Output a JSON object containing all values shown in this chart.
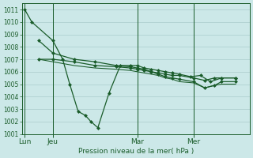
{
  "background_color": "#cce8e8",
  "grid_color": "#aacccc",
  "line_color": "#1a5c2a",
  "ylim": [
    1001,
    1011.5
  ],
  "yticks": [
    1001,
    1002,
    1003,
    1004,
    1005,
    1006,
    1007,
    1008,
    1009,
    1010,
    1011
  ],
  "xlabel": "Pression niveau de la mer( hPa )",
  "xtick_labels": [
    "Lun",
    "Jeu",
    "Mar",
    "Mer"
  ],
  "xtick_positions": [
    0,
    2,
    8,
    12
  ],
  "vline_positions": [
    0,
    2,
    8,
    12
  ],
  "xlim": [
    -0.2,
    16
  ],
  "series0_x": [
    0,
    0.5,
    2,
    2.7,
    3.2,
    3.8,
    4.3,
    4.7,
    5.2,
    6.0,
    6.8,
    7.5,
    8.0,
    8.5,
    9.0,
    9.5,
    10.0,
    10.5,
    11.0,
    11.8,
    12.5,
    13.2,
    14.0,
    15.0
  ],
  "series0_y": [
    1011,
    1010,
    1008.5,
    1007.0,
    1005.0,
    1002.8,
    1002.5,
    1002.0,
    1001.5,
    1004.3,
    1006.5,
    1006.5,
    1006.5,
    1006.3,
    1006.2,
    1006.1,
    1006.0,
    1005.9,
    1005.8,
    1005.6,
    1005.7,
    1005.2,
    1005.5,
    1005.5
  ],
  "series1_x": [
    1.0,
    2.0,
    3.5,
    5.0,
    6.5,
    7.5,
    8.0,
    8.5,
    9.0,
    9.5,
    10.0,
    10.5,
    11.0,
    12.0,
    12.8,
    13.5,
    14.0,
    15.0
  ],
  "series1_y": [
    1008.5,
    1007.5,
    1007.0,
    1006.8,
    1006.5,
    1006.4,
    1006.3,
    1006.2,
    1006.0,
    1005.9,
    1005.8,
    1005.7,
    1005.7,
    1005.5,
    1005.3,
    1005.5,
    1005.5,
    1005.5
  ],
  "series2_x": [
    1.0,
    2.0,
    3.5,
    5.0,
    6.5,
    7.5,
    8.0,
    8.5,
    9.0,
    9.5,
    10.0,
    10.5,
    11.0,
    12.0,
    12.8,
    13.5,
    14.0,
    15.0
  ],
  "series2_y": [
    1007.0,
    1007.0,
    1006.8,
    1006.5,
    1006.4,
    1006.3,
    1006.2,
    1006.1,
    1006.0,
    1005.8,
    1005.6,
    1005.5,
    1005.4,
    1005.2,
    1004.7,
    1004.9,
    1005.2,
    1005.2
  ],
  "series3_x": [
    1.0,
    2.0,
    3.5,
    5.0,
    6.5,
    7.5,
    8.0,
    8.5,
    9.0,
    9.5,
    10.0,
    10.5,
    11.0,
    12.0,
    12.8,
    13.5,
    14.0,
    15.0
  ],
  "series3_y": [
    1007.0,
    1006.8,
    1006.5,
    1006.3,
    1006.2,
    1006.1,
    1006.0,
    1005.9,
    1005.8,
    1005.7,
    1005.5,
    1005.4,
    1005.2,
    1005.1,
    1004.7,
    1004.9,
    1005.0,
    1005.0
  ],
  "marker_size": 2.5,
  "lw": 0.9
}
